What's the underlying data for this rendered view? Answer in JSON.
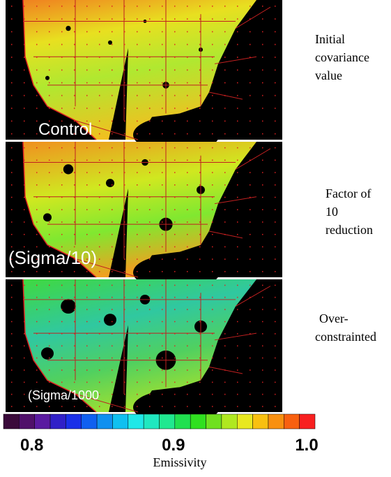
{
  "panels": [
    {
      "label": "Control",
      "caption": [
        "Initial",
        "covariance",
        "value"
      ]
    },
    {
      "label": "(Sigma/10)",
      "caption": [
        "Factor of",
        "10",
        "reduction"
      ]
    },
    {
      "label": "(Sigma/1000",
      "caption": [
        "Over-",
        "constrainted"
      ]
    }
  ],
  "colorbar": {
    "colors": [
      "#3a0a3a",
      "#50106a",
      "#5a1aa0",
      "#3020c8",
      "#1a30e8",
      "#1060f0",
      "#1090f0",
      "#10c0f0",
      "#20e8e8",
      "#20e8c0",
      "#20e890",
      "#20e050",
      "#30e020",
      "#70e020",
      "#b0e820",
      "#e8e820",
      "#f8c010",
      "#f89010",
      "#f86010",
      "#f82020"
    ],
    "lim": [
      0.78,
      1.0
    ],
    "ticks": [
      0.8,
      0.9,
      {
        "value": 1,
        "label": "1.0"
      }
    ],
    "label": "Emissivity"
  }
}
